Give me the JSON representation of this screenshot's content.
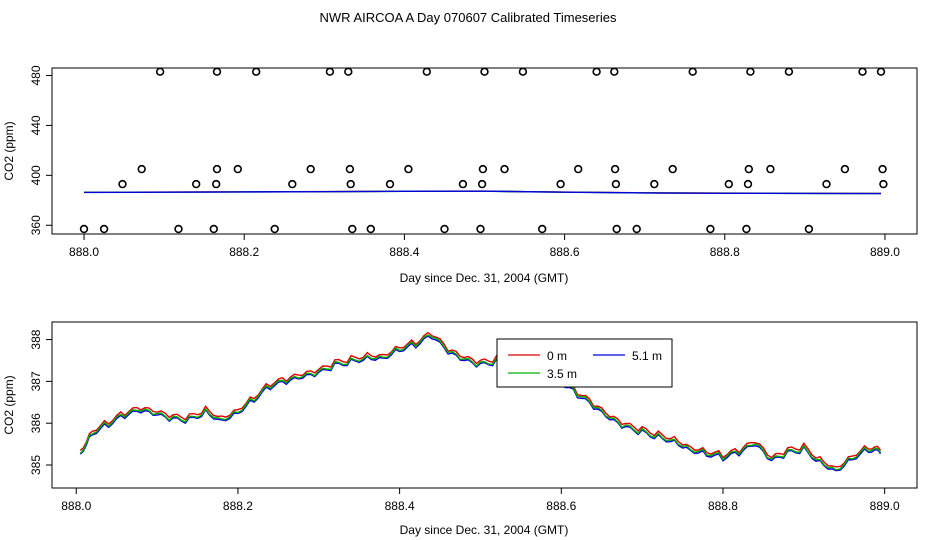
{
  "title": "NWR AIRCOA A  Day 070607  Calibrated Timeseries",
  "chart_data": [
    {
      "type": "scatter",
      "xlabel": "Day since Dec. 31, 2004 (GMT)",
      "ylabel": "CO2 (ppm)",
      "xlim": [
        887.96,
        889.04
      ],
      "ylim": [
        353,
        486
      ],
      "xticks": [
        "888.0",
        "888.2",
        "888.4",
        "888.6",
        "888.8",
        "889.0"
      ],
      "xtick_values": [
        888.0,
        888.2,
        888.4,
        "888.6",
        888.8,
        889.0
      ],
      "yticks": [
        "360",
        "400",
        "440",
        "480"
      ],
      "ytick_values": [
        360,
        400,
        440,
        480
      ],
      "points": [
        {
          "x": 888.0,
          "y": 357
        },
        {
          "x": 888.025,
          "y": 357
        },
        {
          "x": 888.048,
          "y": 393
        },
        {
          "x": 888.072,
          "y": 405
        },
        {
          "x": 888.095,
          "y": 483
        },
        {
          "x": 888.118,
          "y": 357
        },
        {
          "x": 888.14,
          "y": 393
        },
        {
          "x": 888.162,
          "y": 357
        },
        {
          "x": 888.165,
          "y": 393
        },
        {
          "x": 888.166,
          "y": 405
        },
        {
          "x": 888.166,
          "y": 483
        },
        {
          "x": 888.192,
          "y": 405
        },
        {
          "x": 888.215,
          "y": 483
        },
        {
          "x": 888.238,
          "y": 357
        },
        {
          "x": 888.26,
          "y": 393
        },
        {
          "x": 888.283,
          "y": 405
        },
        {
          "x": 888.307,
          "y": 483
        },
        {
          "x": 888.33,
          "y": 483
        },
        {
          "x": 888.332,
          "y": 405
        },
        {
          "x": 888.333,
          "y": 393
        },
        {
          "x": 888.335,
          "y": 357
        },
        {
          "x": 888.358,
          "y": 357
        },
        {
          "x": 888.382,
          "y": 393
        },
        {
          "x": 888.405,
          "y": 405
        },
        {
          "x": 888.428,
          "y": 483
        },
        {
          "x": 888.45,
          "y": 357
        },
        {
          "x": 888.473,
          "y": 393
        },
        {
          "x": 888.495,
          "y": 357
        },
        {
          "x": 888.497,
          "y": 393
        },
        {
          "x": 888.498,
          "y": 405
        },
        {
          "x": 888.5,
          "y": 483
        },
        {
          "x": 888.525,
          "y": 405
        },
        {
          "x": 888.548,
          "y": 483
        },
        {
          "x": 888.572,
          "y": 357
        },
        {
          "x": 888.595,
          "y": 393
        },
        {
          "x": 888.617,
          "y": 405
        },
        {
          "x": 888.64,
          "y": 483
        },
        {
          "x": 888.662,
          "y": 483
        },
        {
          "x": 888.663,
          "y": 405
        },
        {
          "x": 888.664,
          "y": 393
        },
        {
          "x": 888.665,
          "y": 357
        },
        {
          "x": 888.69,
          "y": 357
        },
        {
          "x": 888.712,
          "y": 393
        },
        {
          "x": 888.735,
          "y": 405
        },
        {
          "x": 888.76,
          "y": 483
        },
        {
          "x": 888.782,
          "y": 357
        },
        {
          "x": 888.805,
          "y": 393
        },
        {
          "x": 888.827,
          "y": 357
        },
        {
          "x": 888.829,
          "y": 393
        },
        {
          "x": 888.83,
          "y": 405
        },
        {
          "x": 888.832,
          "y": 483
        },
        {
          "x": 888.857,
          "y": 405
        },
        {
          "x": 888.88,
          "y": 483
        },
        {
          "x": 888.905,
          "y": 357
        },
        {
          "x": 888.927,
          "y": 393
        },
        {
          "x": 888.95,
          "y": 405
        },
        {
          "x": 888.972,
          "y": 483
        },
        {
          "x": 888.995,
          "y": 483
        },
        {
          "x": 888.997,
          "y": 405
        },
        {
          "x": 888.998,
          "y": 393
        }
      ],
      "series": [
        {
          "color": "#e00000",
          "x": [
            888.0,
            888.1,
            888.2,
            888.3,
            888.4,
            888.5,
            888.6,
            888.7,
            888.8,
            888.9,
            888.995
          ],
          "values": [
            386.5,
            386.6,
            386.8,
            387.0,
            387.3,
            387.4,
            386.6,
            386.0,
            385.8,
            385.6,
            385.5
          ]
        },
        {
          "color": "#00b000",
          "x": [
            888.0,
            888.1,
            888.2,
            888.3,
            888.4,
            888.5,
            888.6,
            888.7,
            888.8,
            888.9,
            888.995
          ],
          "values": [
            386.4,
            386.5,
            386.7,
            386.9,
            387.2,
            387.3,
            386.5,
            385.9,
            385.7,
            385.5,
            385.4
          ]
        },
        {
          "color": "#0000e0",
          "x": [
            888.0,
            888.1,
            888.2,
            888.3,
            888.4,
            888.5,
            888.6,
            888.7,
            888.8,
            888.9,
            888.995
          ],
          "values": [
            386.3,
            386.5,
            386.7,
            386.9,
            387.2,
            387.3,
            386.5,
            385.9,
            385.6,
            385.5,
            385.4
          ]
        }
      ]
    },
    {
      "type": "line",
      "xlabel": "Day since Dec. 31, 2004 (GMT)",
      "ylabel": "CO2 (ppm)",
      "xlim": [
        887.97,
        889.04
      ],
      "ylim": [
        384.45,
        388.42
      ],
      "xticks": [
        "888.0",
        "888.2",
        "888.4",
        "888.6",
        "888.8",
        "889.0"
      ],
      "xtick_values": [
        888.0,
        888.2,
        888.4,
        888.6,
        888.8,
        889.0
      ],
      "yticks": [
        "385",
        "386",
        "387",
        "388"
      ],
      "ytick_values": [
        385,
        386,
        387,
        388
      ],
      "legend": {
        "placement": "top-center",
        "entries": [
          {
            "label": "0 m",
            "color": "#e00000"
          },
          {
            "label": "5.1 m",
            "color": "#0000e0"
          },
          {
            "label": "3.5 m",
            "color": "#00b000"
          }
        ]
      },
      "series": [
        {
          "name": "0 m",
          "color": "#e00000",
          "offset": 0.05,
          "x": [
            888.005,
            888.02,
            888.04,
            888.06,
            888.08,
            888.1,
            888.12,
            888.14,
            888.16,
            888.18,
            888.2,
            888.22,
            888.24,
            888.26,
            888.28,
            888.3,
            888.32,
            888.34,
            888.36,
            888.38,
            888.4,
            888.42,
            888.44,
            888.46,
            888.48,
            888.5,
            888.52,
            888.54,
            888.56,
            888.58,
            888.6,
            888.62,
            888.64,
            888.66,
            888.68,
            888.7,
            888.72,
            888.74,
            888.76,
            888.78,
            888.8,
            888.82,
            888.84,
            888.86,
            888.88,
            888.9,
            888.92,
            888.94,
            888.96,
            888.98,
            888.995
          ],
          "values": [
            385.3,
            385.8,
            386.0,
            386.2,
            386.3,
            386.2,
            386.1,
            386.1,
            386.3,
            386.1,
            386.3,
            386.6,
            386.9,
            387.0,
            387.1,
            387.2,
            387.4,
            387.5,
            387.6,
            387.6,
            387.8,
            387.9,
            388.1,
            387.7,
            387.5,
            387.4,
            387.5,
            387.6,
            387.4,
            387.2,
            387.0,
            386.7,
            386.4,
            386.1,
            385.9,
            385.8,
            385.7,
            385.6,
            385.4,
            385.3,
            385.2,
            385.3,
            385.5,
            385.1,
            385.3,
            385.4,
            385.1,
            384.9,
            385.2,
            385.4,
            385.3
          ]
        },
        {
          "name": "5.1 m",
          "color": "#0000e0",
          "offset": -0.03,
          "x": [
            888.005,
            888.02,
            888.04,
            888.06,
            888.08,
            888.1,
            888.12,
            888.14,
            888.16,
            888.18,
            888.2,
            888.22,
            888.24,
            888.26,
            888.28,
            888.3,
            888.32,
            888.34,
            888.36,
            888.38,
            888.4,
            888.42,
            888.44,
            888.46,
            888.48,
            888.5,
            888.52,
            888.54,
            888.56,
            888.58,
            888.6,
            888.62,
            888.64,
            888.66,
            888.68,
            888.7,
            888.72,
            888.74,
            888.76,
            888.78,
            888.8,
            888.82,
            888.84,
            888.86,
            888.88,
            888.9,
            888.92,
            888.94,
            888.96,
            888.98,
            888.995
          ],
          "values": [
            385.3,
            385.8,
            386.0,
            386.2,
            386.3,
            386.2,
            386.1,
            386.1,
            386.3,
            386.1,
            386.3,
            386.6,
            386.9,
            387.0,
            387.1,
            387.2,
            387.4,
            387.5,
            387.6,
            387.6,
            387.8,
            387.9,
            388.1,
            387.7,
            387.5,
            387.4,
            387.5,
            387.6,
            387.4,
            387.2,
            387.0,
            386.7,
            386.4,
            386.1,
            385.9,
            385.8,
            385.7,
            385.6,
            385.4,
            385.3,
            385.2,
            385.3,
            385.5,
            385.1,
            385.3,
            385.4,
            385.1,
            384.9,
            385.2,
            385.4,
            385.3
          ]
        },
        {
          "name": "3.5 m",
          "color": "#00b000",
          "offset": 0.0,
          "x": [
            888.005,
            888.02,
            888.04,
            888.06,
            888.08,
            888.1,
            888.12,
            888.14,
            888.16,
            888.18,
            888.2,
            888.22,
            888.24,
            888.26,
            888.28,
            888.3,
            888.32,
            888.34,
            888.36,
            888.38,
            888.4,
            888.42,
            888.44,
            888.46,
            888.48,
            888.5,
            888.52,
            888.54,
            888.56,
            888.58,
            888.6,
            888.62,
            888.64,
            888.66,
            888.68,
            888.7,
            888.72,
            888.74,
            888.76,
            888.78,
            888.8,
            888.82,
            888.84,
            888.86,
            888.88,
            888.9,
            888.92,
            888.94,
            888.96,
            888.98,
            888.995
          ],
          "values": [
            385.3,
            385.8,
            386.0,
            386.2,
            386.3,
            386.2,
            386.1,
            386.1,
            386.3,
            386.1,
            386.3,
            386.6,
            386.9,
            387.0,
            387.1,
            387.2,
            387.4,
            387.5,
            387.6,
            387.6,
            387.8,
            387.9,
            388.1,
            387.7,
            387.5,
            387.4,
            387.5,
            387.6,
            387.4,
            387.2,
            387.0,
            386.7,
            386.4,
            386.1,
            385.9,
            385.8,
            385.7,
            385.6,
            385.4,
            385.3,
            385.2,
            385.3,
            385.5,
            385.1,
            385.3,
            385.4,
            385.1,
            384.9,
            385.2,
            385.4,
            385.3
          ]
        }
      ]
    }
  ]
}
